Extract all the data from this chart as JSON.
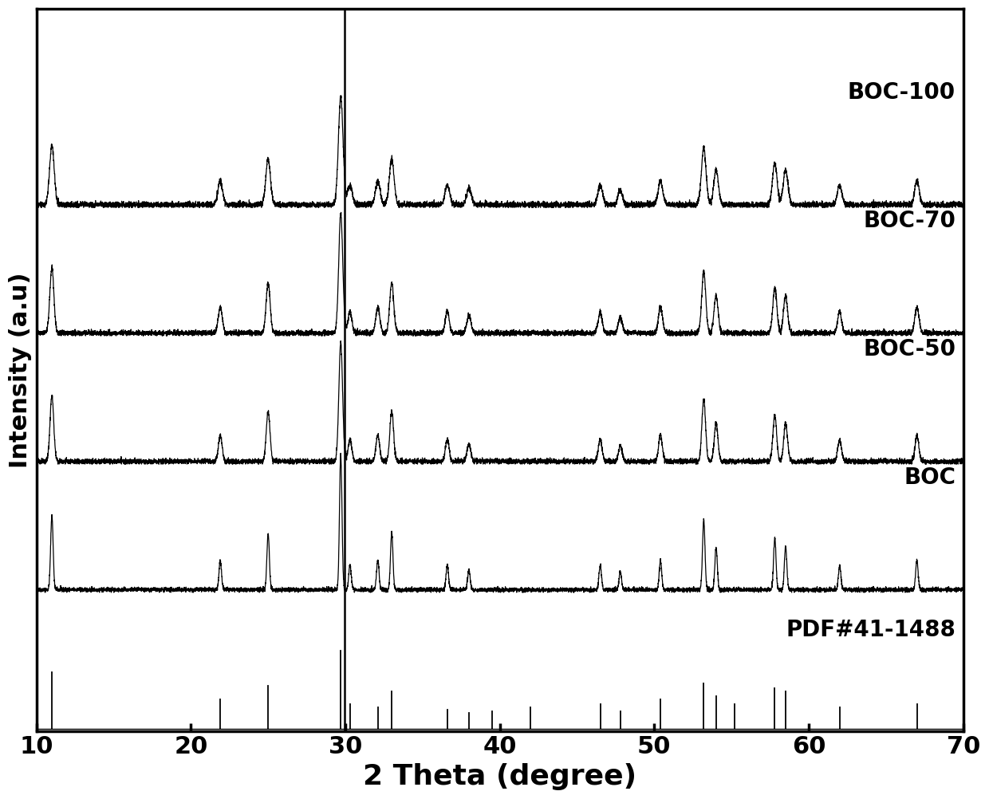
{
  "xlim": [
    10,
    70
  ],
  "xlabel": "2 Theta (degree)",
  "ylabel": "Intensity (a.u)",
  "xlabel_fontsize": 26,
  "ylabel_fontsize": 22,
  "tick_fontsize": 22,
  "label_fontsize": 20,
  "background_color": "#ffffff",
  "line_color": "#000000",
  "series_labels": [
    "BOC-100",
    "BOC-70",
    "BOC-50",
    "BOC",
    "PDF#41-1488"
  ],
  "label_x_positions": [
    63.0,
    63.0,
    63.0,
    63.0,
    58.0
  ],
  "offsets": [
    3.8,
    2.85,
    1.9,
    0.95,
    0.0
  ],
  "pdf_peaks": [
    11.0,
    21.9,
    25.0,
    29.7,
    30.3,
    32.1,
    33.0,
    36.6,
    38.0,
    39.5,
    42.0,
    46.5,
    47.8,
    50.4,
    53.2,
    54.0,
    55.2,
    57.8,
    58.5,
    62.0,
    67.0
  ],
  "pdf_heights": [
    0.72,
    0.38,
    0.55,
    1.0,
    0.32,
    0.28,
    0.48,
    0.25,
    0.2,
    0.22,
    0.28,
    0.32,
    0.22,
    0.38,
    0.58,
    0.42,
    0.32,
    0.52,
    0.48,
    0.28,
    0.32
  ],
  "noise_seed": 42,
  "vline_x": 29.95
}
